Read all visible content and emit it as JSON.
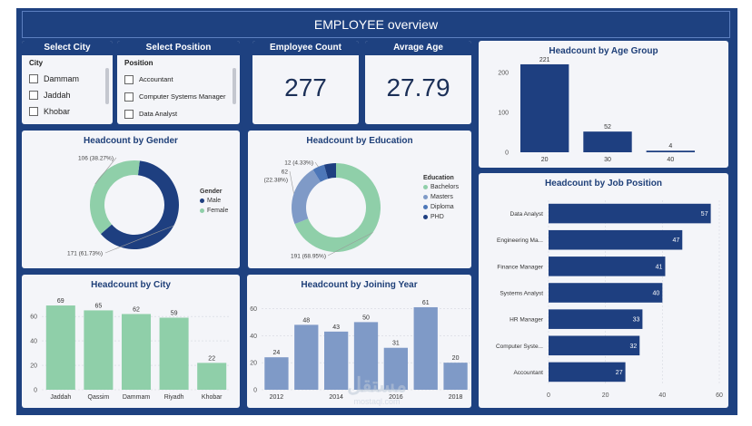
{
  "header": {
    "title": "EMPLOYEE overview"
  },
  "colors": {
    "navy": "#1e4180",
    "green": "#8fcfa9",
    "steel": "#7f9ac7",
    "bar_dark": "#1e3f80"
  },
  "slicers": {
    "city": {
      "title": "Select City",
      "field": "City",
      "options": [
        "Dammam",
        "Jaddah",
        "Khobar"
      ]
    },
    "position": {
      "title": "Select Position",
      "field": "Position",
      "options": [
        "Accountant",
        "Computer Systems Manager",
        "Data Analyst"
      ]
    }
  },
  "kpis": {
    "employee_count": {
      "title": "Employee Count",
      "value": "277"
    },
    "average_age": {
      "title": "Avrage Age",
      "value": "27.79"
    }
  },
  "watermark": {
    "text": "مستقل",
    "sub": "mostaql.com"
  },
  "chart_data": [
    {
      "id": "age_group",
      "type": "bar",
      "title": "Headcount by Age Group",
      "categories": [
        "20",
        "30",
        "40"
      ],
      "values": [
        221,
        52,
        4
      ],
      "yticks": [
        0,
        100,
        200
      ],
      "ylim": [
        0,
        230
      ],
      "grid": false
    },
    {
      "id": "gender",
      "type": "pie",
      "title": "Headcount by Gender",
      "legend_title": "Gender",
      "legend_position": "right",
      "labels": [
        "Male",
        "Female"
      ],
      "values": [
        171,
        106
      ],
      "data_labels": [
        "171 (61.73%)",
        "106 (38.27%)"
      ],
      "colors": [
        "#1e3f80",
        "#8fcfa9"
      ]
    },
    {
      "id": "education",
      "type": "pie",
      "title": "Headcount by Education",
      "legend_title": "Education",
      "legend_position": "right",
      "labels": [
        "Bachelors",
        "Masters",
        "Diploma",
        "PHD"
      ],
      "values": [
        191,
        62,
        12,
        12
      ],
      "data_labels": [
        "191 (68.95%)",
        "62 (22.38%)",
        "12 (4.33%)",
        ""
      ],
      "colors": [
        "#8fcfa9",
        "#7f9ac7",
        "#4d77b8",
        "#1e3f80"
      ]
    },
    {
      "id": "city",
      "type": "bar",
      "title": "Headcount by City",
      "categories": [
        "Jaddah",
        "Qassim",
        "Dammam",
        "Riyadh",
        "Khobar"
      ],
      "values": [
        69,
        65,
        62,
        59,
        22
      ],
      "yticks": [
        0,
        20,
        40,
        60
      ],
      "ylim": [
        0,
        72
      ],
      "grid": true
    },
    {
      "id": "joining_year",
      "type": "bar",
      "title": "Headcount by Joining Year",
      "x": [
        2012,
        2013,
        2014,
        2015,
        2016,
        2017,
        2018
      ],
      "values": [
        24,
        48,
        43,
        50,
        31,
        61,
        20
      ],
      "xtick_labels": [
        "2012",
        "2014",
        "2016",
        "2018"
      ],
      "yticks": [
        0,
        20,
        40,
        60
      ],
      "ylim": [
        0,
        65
      ],
      "grid": true
    },
    {
      "id": "job_position",
      "type": "bar",
      "orientation": "horizontal",
      "title": "Headcount by Job Position",
      "categories": [
        "Data Analyst",
        "Engineering Ma...",
        "Finance Manager",
        "Systems Analyst",
        "HR Manager",
        "Computer Syste...",
        "Accountant"
      ],
      "values": [
        57,
        47,
        41,
        40,
        33,
        32,
        27
      ],
      "xticks": [
        0,
        20,
        40,
        60
      ],
      "xlim": [
        0,
        60
      ],
      "grid": true
    }
  ]
}
